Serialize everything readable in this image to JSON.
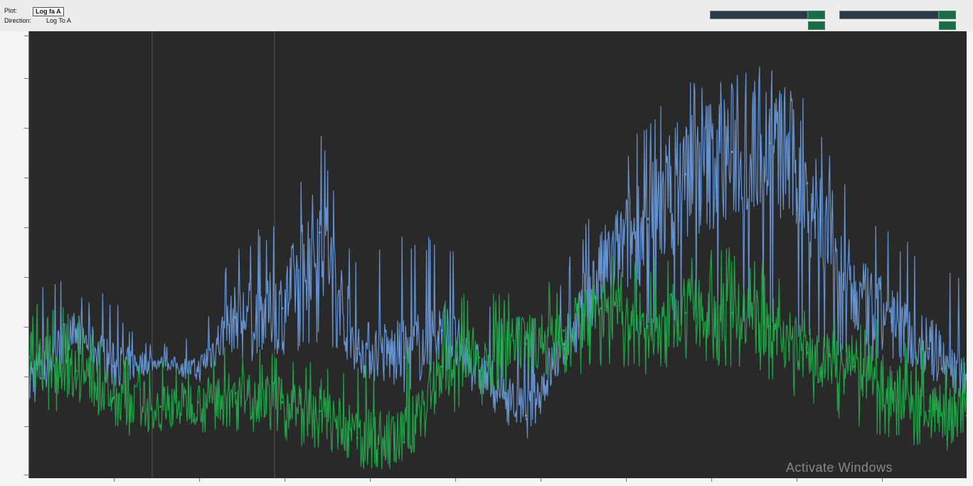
{
  "toolbar": {
    "frame_label": "Plot:",
    "frame_value": "Log fa A",
    "direction_label": "Direction:",
    "direction_value": "Log To A"
  },
  "status": {
    "watermark": "Activate Windows"
  },
  "colors": {
    "plot_background": "#292929",
    "series_blue": "#6c9de3",
    "series_green": "#1fb04a",
    "meter_background": "#2c3a48",
    "readout_green": "#1c6b46"
  },
  "chart_data": {
    "type": "line",
    "title": "",
    "xlabel": "",
    "ylabel": "",
    "xlim": [
      0,
      100
    ],
    "ylim": [
      0,
      100
    ],
    "grid": false,
    "legend": "none",
    "noise_note": "",
    "series": [
      {
        "color": "#6c9de3",
        "x": [
          0,
          5,
          9,
          14,
          18,
          22,
          27,
          31,
          35,
          40,
          44,
          48,
          53,
          57,
          61,
          66,
          70,
          75,
          79,
          83,
          88,
          92,
          96,
          100
        ],
        "y": [
          22,
          33,
          25,
          26,
          24,
          36,
          38,
          55,
          29,
          27,
          33,
          24,
          14,
          30,
          46,
          58,
          68,
          73,
          75,
          66,
          40,
          35,
          29,
          23
        ],
        "min": [
          18,
          28,
          20,
          25,
          22,
          25,
          26,
          30,
          25,
          24,
          26,
          22,
          14,
          24,
          30,
          32,
          34,
          34,
          34,
          30,
          25,
          24,
          24,
          20
        ],
        "max": [
          45,
          45,
          40,
          30,
          33,
          52,
          60,
          78,
          48,
          55,
          55,
          44,
          35,
          48,
          65,
          82,
          90,
          93,
          92,
          85,
          62,
          55,
          50,
          45
        ]
      },
      {
        "color": "#1fb04a",
        "x": [
          0,
          5,
          9,
          14,
          18,
          22,
          27,
          31,
          35,
          40,
          44,
          48,
          53,
          57,
          61,
          66,
          70,
          75,
          79,
          83,
          88,
          92,
          96,
          100
        ],
        "y": [
          27,
          24,
          18,
          16,
          17,
          19,
          17,
          15,
          9,
          8,
          25,
          27,
          30,
          33,
          38,
          34,
          37,
          37,
          34,
          28,
          25,
          20,
          15,
          14
        ],
        "min": [
          16,
          14,
          10,
          8,
          10,
          10,
          8,
          6,
          2,
          1,
          14,
          16,
          20,
          22,
          24,
          22,
          24,
          24,
          22,
          16,
          12,
          8,
          6,
          4
        ],
        "max": [
          40,
          38,
          28,
          28,
          28,
          30,
          28,
          26,
          26,
          28,
          40,
          42,
          44,
          44,
          50,
          50,
          52,
          52,
          48,
          40,
          38,
          34,
          30,
          28
        ]
      }
    ]
  }
}
